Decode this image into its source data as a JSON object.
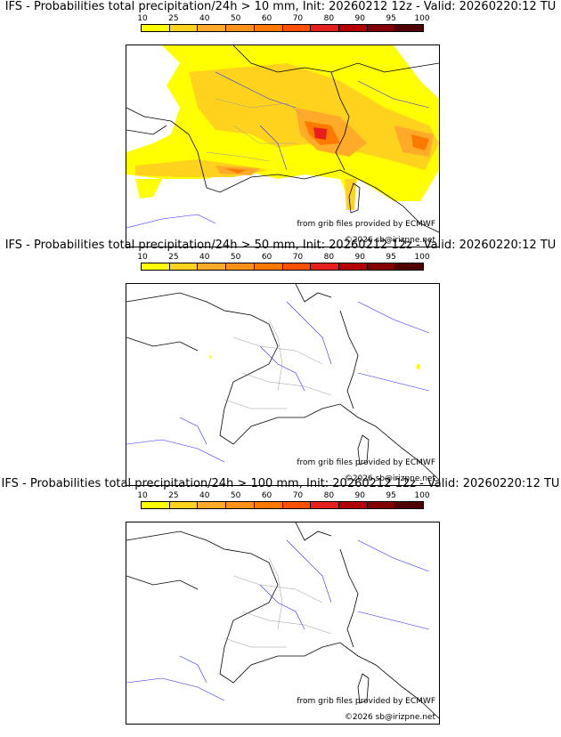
{
  "colorbar": {
    "ticks": [
      "10",
      "25",
      "40",
      "50",
      "60",
      "70",
      "80",
      "90",
      "95",
      "100"
    ],
    "colors": [
      "#ffff00",
      "#ffd21e",
      "#ffaa28",
      "#ff9119",
      "#ff7800",
      "#ff5000",
      "#e61e1e",
      "#b40000",
      "#820000",
      "#500000"
    ]
  },
  "panels": [
    {
      "title": "IFS - Probabilities total precipitation/24h > 10 mm, Init: 20260212 12z - Valid: 20260220:12 TU",
      "credit_source": "from grib files provided by ECMWF",
      "credit_copy": "©2026 sb@irizpne.net",
      "coverage": "widespread"
    },
    {
      "title": "IFS - Probabilities total precipitation/24h > 50 mm, Init: 20260212 12z - Valid: 20260220:12 TU",
      "credit_source": "from grib files provided by ECMWF",
      "credit_copy": "©2026 sb@irizpne.net",
      "coverage": "isolated"
    },
    {
      "title": "IFS - Probabilities total precipitation/24h > 100 mm, Init: 20260212 12z - Valid: 20260220:12 TU",
      "credit_source": "from grib files provided by ECMWF",
      "credit_copy": "©2026 sb@irizpne.net",
      "coverage": "none"
    }
  ]
}
